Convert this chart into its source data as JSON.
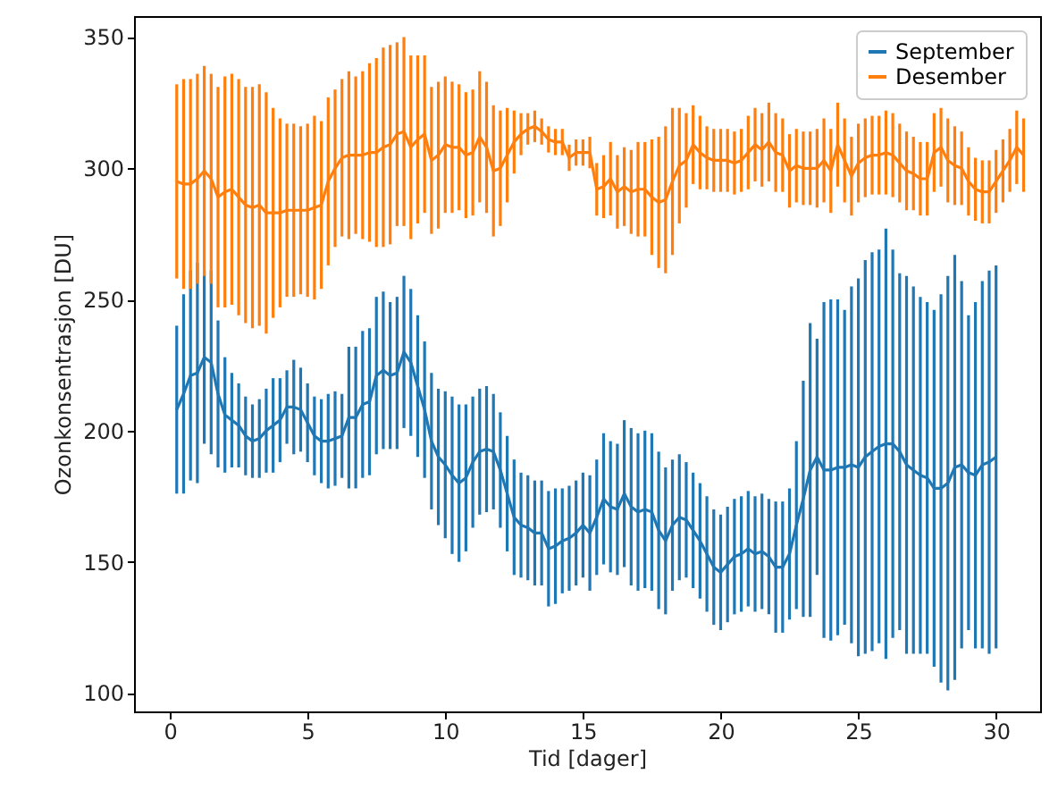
{
  "chart_data": {
    "type": "line",
    "xlabel": "Tid [dager]",
    "ylabel": "Ozonkonsentrasjon [DU]",
    "xlim": [
      -1.3,
      31.6
    ],
    "ylim": [
      93,
      358
    ],
    "xticks": [
      0,
      5,
      10,
      15,
      20,
      25,
      30
    ],
    "yticks": [
      100,
      150,
      200,
      250,
      300,
      350
    ],
    "grid": false,
    "legend": "top right",
    "series": [
      {
        "name": "September",
        "color": "#1f77b4",
        "x": [
          0.25,
          0.5,
          0.75,
          1,
          1.25,
          1.5,
          1.75,
          2,
          2.25,
          2.5,
          2.75,
          3,
          3.25,
          3.5,
          3.75,
          4,
          4.25,
          4.5,
          4.75,
          5,
          5.25,
          5.5,
          5.75,
          6,
          6.25,
          6.5,
          6.75,
          7,
          7.25,
          7.5,
          7.75,
          8,
          8.25,
          8.5,
          8.75,
          9,
          9.25,
          9.5,
          9.75,
          10,
          10.25,
          10.5,
          10.75,
          11,
          11.25,
          11.5,
          11.75,
          12,
          12.25,
          12.5,
          12.75,
          13,
          13.25,
          13.5,
          13.75,
          14,
          14.25,
          14.5,
          14.75,
          15,
          15.25,
          15.5,
          15.75,
          16,
          16.25,
          16.5,
          16.75,
          17,
          17.25,
          17.5,
          17.75,
          18,
          18.25,
          18.5,
          18.75,
          19,
          19.25,
          19.5,
          19.75,
          20,
          20.25,
          20.5,
          20.75,
          21,
          21.25,
          21.5,
          21.75,
          22,
          22.25,
          22.5,
          22.75,
          23,
          23.25,
          23.5,
          23.75,
          24,
          24.25,
          24.5,
          24.75,
          25,
          25.25,
          25.5,
          25.75,
          26,
          26.25,
          26.5,
          26.75,
          27,
          27.25,
          27.5,
          27.75,
          28,
          28.25,
          28.5,
          28.75,
          29,
          29.25,
          29.5,
          29.75,
          30
        ],
        "values": [
          208,
          214,
          221,
          222,
          228,
          226,
          214,
          206,
          204,
          202,
          198,
          196,
          197,
          200,
          202,
          204,
          209,
          209,
          208,
          203,
          198,
          196,
          196,
          197,
          198,
          205,
          205,
          210,
          211,
          221,
          223,
          221,
          222,
          230,
          226,
          217,
          208,
          196,
          190,
          187,
          183,
          180,
          182,
          188,
          192,
          193,
          192,
          185,
          176,
          167,
          164,
          163,
          161,
          161,
          155,
          156,
          158,
          159,
          161,
          164,
          161,
          167,
          174,
          171,
          170,
          176,
          171,
          169,
          170,
          169,
          162,
          158,
          164,
          167,
          166,
          162,
          158,
          153,
          148,
          146,
          149,
          152,
          153,
          155,
          153,
          154,
          152,
          148,
          148,
          153,
          164,
          174,
          185,
          190,
          185,
          185,
          186,
          186,
          187,
          186,
          190,
          192,
          194,
          195,
          195,
          192,
          187,
          185,
          183,
          182,
          178,
          178,
          180,
          186,
          187,
          184,
          183,
          187,
          188,
          190
        ],
        "errors": [
          32,
          38,
          40,
          42,
          33,
          35,
          28,
          22,
          18,
          16,
          15,
          14,
          15,
          16,
          18,
          16,
          14,
          18,
          16,
          15,
          15,
          16,
          18,
          18,
          16,
          27,
          27,
          28,
          28,
          30,
          30,
          28,
          29,
          29,
          28,
          27,
          26,
          26,
          26,
          28,
          30,
          30,
          28,
          25,
          24,
          24,
          22,
          22,
          22,
          22,
          20,
          20,
          20,
          20,
          22,
          22,
          20,
          20,
          20,
          20,
          22,
          22,
          25,
          25,
          25,
          28,
          30,
          30,
          30,
          30,
          30,
          28,
          25,
          24,
          22,
          22,
          22,
          22,
          22,
          22,
          22,
          22,
          22,
          22,
          22,
          22,
          22,
          25,
          25,
          25,
          32,
          45,
          56,
          45,
          64,
          65,
          64,
          60,
          68,
          72,
          75,
          76,
          75,
          82,
          74,
          68,
          72,
          70,
          68,
          67,
          68,
          74,
          79,
          81,
          70,
          60,
          66,
          70,
          73,
          73
        ]
      },
      {
        "name": "Desember",
        "color": "#ff7f0e",
        "x": [
          0.25,
          0.5,
          0.75,
          1,
          1.25,
          1.5,
          1.75,
          2,
          2.25,
          2.5,
          2.75,
          3,
          3.25,
          3.5,
          3.75,
          4,
          4.25,
          4.5,
          4.75,
          5,
          5.25,
          5.5,
          5.75,
          6,
          6.25,
          6.5,
          6.75,
          7,
          7.25,
          7.5,
          7.75,
          8,
          8.25,
          8.5,
          8.75,
          9,
          9.25,
          9.5,
          9.75,
          10,
          10.25,
          10.5,
          10.75,
          11,
          11.25,
          11.5,
          11.75,
          12,
          12.25,
          12.5,
          12.75,
          13,
          13.25,
          13.5,
          13.75,
          14,
          14.25,
          14.5,
          14.75,
          15,
          15.25,
          15.5,
          15.75,
          16,
          16.25,
          16.5,
          16.75,
          17,
          17.25,
          17.5,
          17.75,
          18,
          18.25,
          18.5,
          18.75,
          19,
          19.25,
          19.5,
          19.75,
          20,
          20.25,
          20.5,
          20.75,
          21,
          21.25,
          21.5,
          21.75,
          22,
          22.25,
          22.5,
          22.75,
          23,
          23.25,
          23.5,
          23.75,
          24,
          24.25,
          24.5,
          24.75,
          25,
          25.25,
          25.5,
          25.75,
          26,
          26.25,
          26.5,
          26.75,
          27,
          27.25,
          27.5,
          27.75,
          28,
          28.25,
          28.5,
          28.75,
          29,
          29.25,
          29.5,
          29.75,
          30,
          30.25,
          30.5,
          30.75,
          31
        ],
        "values": [
          295,
          294,
          294,
          296,
          299,
          296,
          289,
          291,
          292,
          289,
          286,
          285,
          286,
          283,
          283,
          283,
          284,
          284,
          284,
          284,
          285,
          286,
          295,
          300,
          304,
          305,
          305,
          305,
          306,
          306,
          308,
          309,
          313,
          314,
          308,
          311,
          313,
          303,
          305,
          309,
          308,
          308,
          305,
          306,
          312,
          308,
          299,
          300,
          305,
          310,
          313,
          315,
          316,
          314,
          311,
          310,
          310,
          304,
          306,
          306,
          306,
          292,
          293,
          296,
          291,
          293,
          291,
          292,
          292,
          289,
          287,
          288,
          295,
          301,
          303,
          309,
          306,
          304,
          303,
          303,
          303,
          302,
          303,
          306,
          309,
          307,
          310,
          306,
          305,
          299,
          301,
          300,
          300,
          300,
          303,
          299,
          309,
          303,
          297,
          302,
          304,
          305,
          305,
          306,
          305,
          302,
          299,
          298,
          296,
          296,
          306,
          308,
          303,
          301,
          300,
          295,
          292,
          291,
          291,
          295,
          299,
          303,
          308,
          305
        ],
        "errors": [
          37,
          40,
          40,
          40,
          40,
          40,
          42,
          44,
          44,
          45,
          45,
          46,
          46,
          46,
          40,
          36,
          33,
          33,
          32,
          33,
          35,
          32,
          32,
          30,
          30,
          32,
          30,
          32,
          34,
          36,
          38,
          38,
          35,
          36,
          35,
          32,
          30,
          28,
          28,
          26,
          25,
          24,
          24,
          24,
          25,
          25,
          25,
          22,
          18,
          12,
          8,
          6,
          6,
          5,
          5,
          5,
          5,
          5,
          5,
          5,
          6,
          10,
          12,
          14,
          14,
          15,
          16,
          18,
          18,
          22,
          25,
          28,
          28,
          22,
          18,
          15,
          14,
          12,
          12,
          12,
          12,
          12,
          12,
          14,
          14,
          14,
          15,
          15,
          14,
          14,
          14,
          14,
          14,
          15,
          16,
          16,
          16,
          16,
          15,
          15,
          15,
          15,
          15,
          16,
          16,
          15,
          15,
          14,
          14,
          14,
          15,
          15,
          16,
          15,
          14,
          13,
          12,
          12,
          12,
          12,
          12,
          12,
          14,
          14
        ]
      }
    ]
  }
}
